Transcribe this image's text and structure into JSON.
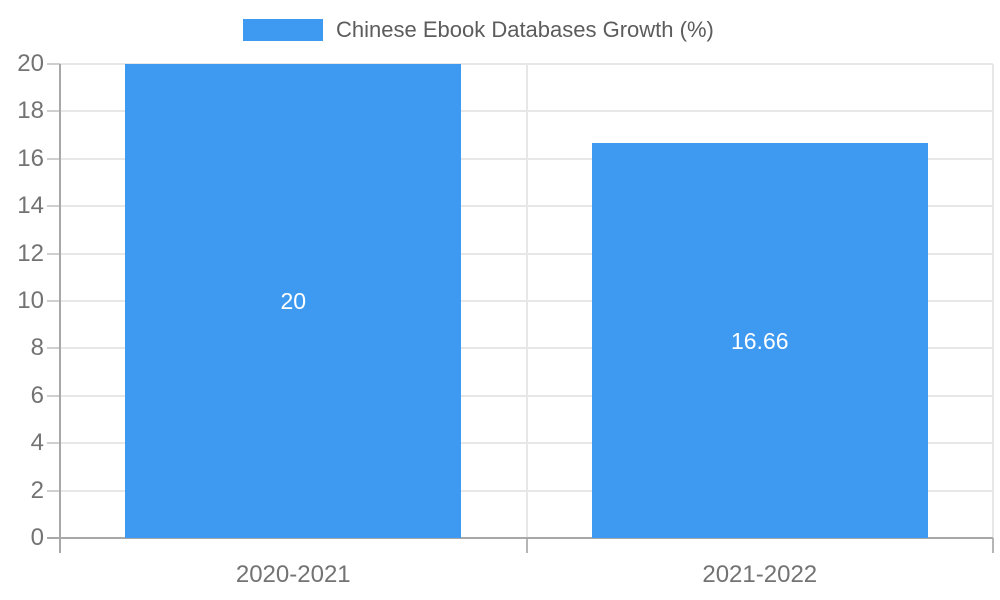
{
  "chart_data": {
    "type": "bar",
    "legend": "Chinese Ebook Databases Growth (%)",
    "categories": [
      "2020-2021",
      "2021-2022"
    ],
    "values": [
      20,
      16.66
    ],
    "value_labels": [
      "20",
      "16.66"
    ],
    "ylim": [
      0,
      20
    ],
    "yticks": [
      0,
      2,
      4,
      6,
      8,
      10,
      12,
      14,
      16,
      18,
      20
    ],
    "grid": true,
    "legend_position": "top-center",
    "value_labels_inside_bars": true,
    "colors": {
      "bar": "#3D9AF0",
      "grid": "#e7e7e7",
      "axis": "#a8a8a8",
      "tick_text": "#737373",
      "legend_text": "#5c5c5c",
      "value_text": "#ffffff",
      "background": "#ffffff"
    }
  }
}
